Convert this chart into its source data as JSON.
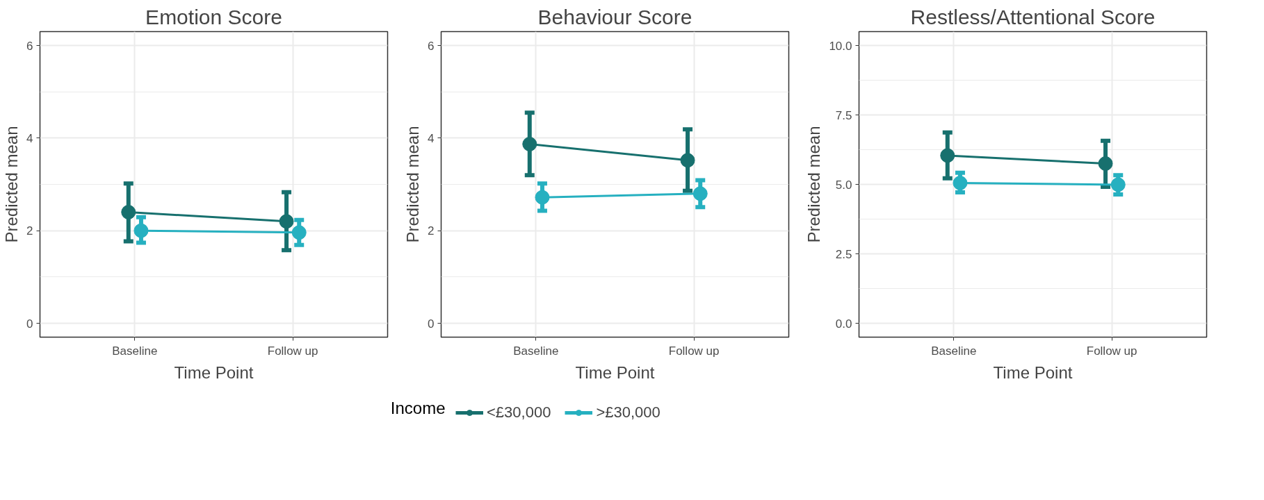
{
  "chart_data": [
    {
      "type": "line",
      "title": "Emotion Score",
      "xlabel": "Time Point",
      "ylabel": "Predicted mean",
      "categories": [
        "Baseline",
        "Follow up"
      ],
      "ylim": [
        -0.3,
        6.3
      ],
      "yticks": [
        0,
        2,
        4,
        6
      ],
      "grid": true,
      "marker": "circle",
      "series": [
        {
          "color": "#17706e",
          "values": [
            2.4,
            2.2
          ],
          "errors": [
            [
              1.77,
              3.02
            ],
            [
              1.58,
              2.83
            ]
          ]
        },
        {
          "color": "#26b0c0",
          "values": [
            2.0,
            1.96
          ],
          "errors": [
            [
              1.74,
              2.29
            ],
            [
              1.69,
              2.23
            ]
          ]
        }
      ]
    },
    {
      "type": "line",
      "title": "Behaviour Score",
      "xlabel": "Time Point",
      "ylabel": "Predicted mean",
      "categories": [
        "Baseline",
        "Follow up"
      ],
      "ylim": [
        -0.3,
        6.3
      ],
      "yticks": [
        0,
        2,
        4,
        6
      ],
      "grid": true,
      "marker": "circle",
      "legend": "bottom",
      "legend_title": "Income",
      "series": [
        {
          "name": "<£30,000",
          "color": "#17706e",
          "values": [
            3.87,
            3.52
          ],
          "errors": [
            [
              3.2,
              4.55
            ],
            [
              2.86,
              4.19
            ]
          ]
        },
        {
          "name": ">£30,000",
          "color": "#26b0c0",
          "values": [
            2.72,
            2.8
          ],
          "errors": [
            [
              2.43,
              3.02
            ],
            [
              2.51,
              3.09
            ]
          ]
        }
      ]
    },
    {
      "type": "line",
      "title": "Restless/Attentional Score",
      "xlabel": "Time Point",
      "ylabel": "Predicted mean",
      "categories": [
        "Baseline",
        "Follow up"
      ],
      "ylim": [
        -0.5,
        10.5
      ],
      "yticks": [
        {
          "value": 0,
          "label": "0.0"
        },
        {
          "value": 2.5,
          "label": "2.5"
        },
        {
          "value": 5,
          "label": "5.0"
        },
        {
          "value": 7.5,
          "label": "7.5"
        },
        {
          "value": 10,
          "label": "10.0"
        }
      ],
      "grid": true,
      "marker": "circle",
      "series": [
        {
          "color": "#17706e",
          "values": [
            6.04,
            5.75
          ],
          "errors": [
            [
              5.22,
              6.87
            ],
            [
              4.91,
              6.57
            ]
          ]
        },
        {
          "color": "#26b0c0",
          "values": [
            5.05,
            4.99
          ],
          "errors": [
            [
              4.71,
              5.42
            ],
            [
              4.64,
              5.33
            ]
          ]
        }
      ]
    }
  ]
}
